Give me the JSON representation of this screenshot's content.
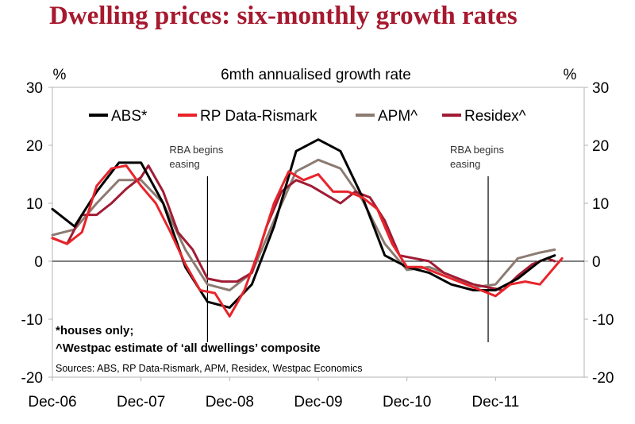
{
  "title": "Dwelling prices: six-monthly growth rates",
  "chart_data": {
    "type": "line",
    "subtitle": "6mth annualised growth rate",
    "y_unit_left": "%",
    "y_unit_right": "%",
    "ylim": [
      -20,
      30
    ],
    "yticks": [
      "30",
      "20",
      "10",
      "0",
      "-10",
      "-20"
    ],
    "xlim": [
      "2006-12",
      "2012-12"
    ],
    "xticks": [
      "Dec-06",
      "Dec-07",
      "Dec-08",
      "Dec-09",
      "Dec-10",
      "Dec-11"
    ],
    "grid": false,
    "legend_position": "top",
    "series": [
      {
        "name": "ABS*",
        "color": "#000000",
        "points": [
          [
            "2006-12",
            9
          ],
          [
            "2007-03",
            6
          ],
          [
            "2007-06",
            12
          ],
          [
            "2007-09",
            17
          ],
          [
            "2007-12",
            17
          ],
          [
            "2008-03",
            10
          ],
          [
            "2008-06",
            -1
          ],
          [
            "2008-09",
            -7
          ],
          [
            "2008-12",
            -8
          ],
          [
            "2009-03",
            -4
          ],
          [
            "2009-06",
            6
          ],
          [
            "2009-09",
            19
          ],
          [
            "2009-12",
            21
          ],
          [
            "2010-03",
            19
          ],
          [
            "2010-06",
            11
          ],
          [
            "2010-09",
            1
          ],
          [
            "2010-12",
            -1
          ],
          [
            "2011-03",
            -2
          ],
          [
            "2011-06",
            -4
          ],
          [
            "2011-09",
            -5
          ],
          [
            "2011-12",
            -5
          ],
          [
            "2012-03",
            -3
          ],
          [
            "2012-06",
            0
          ],
          [
            "2012-08",
            1
          ]
        ]
      },
      {
        "name": "RP Data-Rismark",
        "color": "#e8242b",
        "points": [
          [
            "2006-12",
            4
          ],
          [
            "2007-02",
            3
          ],
          [
            "2007-04",
            5
          ],
          [
            "2007-06",
            13
          ],
          [
            "2007-08",
            16
          ],
          [
            "2007-10",
            16.5
          ],
          [
            "2007-12",
            13
          ],
          [
            "2008-02",
            10
          ],
          [
            "2008-04",
            5
          ],
          [
            "2008-06",
            -0.5
          ],
          [
            "2008-08",
            -5
          ],
          [
            "2008-10",
            -5.5
          ],
          [
            "2008-12",
            -9.5
          ],
          [
            "2009-02",
            -5
          ],
          [
            "2009-04",
            2
          ],
          [
            "2009-06",
            10
          ],
          [
            "2009-08",
            15.5
          ],
          [
            "2009-10",
            14
          ],
          [
            "2009-12",
            15
          ],
          [
            "2010-02",
            12
          ],
          [
            "2010-04",
            12
          ],
          [
            "2010-06",
            11
          ],
          [
            "2010-08",
            9
          ],
          [
            "2010-10",
            3
          ],
          [
            "2010-12",
            -1
          ],
          [
            "2011-02",
            -1
          ],
          [
            "2011-04",
            -2
          ],
          [
            "2011-06",
            -3
          ],
          [
            "2011-08",
            -4
          ],
          [
            "2011-10",
            -5
          ],
          [
            "2011-12",
            -6
          ],
          [
            "2012-02",
            -4
          ],
          [
            "2012-04",
            -3.5
          ],
          [
            "2012-06",
            -4
          ],
          [
            "2012-08",
            -1
          ],
          [
            "2012-09",
            0.5
          ]
        ]
      },
      {
        "name": "APM^",
        "color": "#8c7b72",
        "points": [
          [
            "2006-12",
            4.5
          ],
          [
            "2007-03",
            5.5
          ],
          [
            "2007-06",
            10
          ],
          [
            "2007-09",
            14
          ],
          [
            "2007-12",
            14
          ],
          [
            "2008-03",
            10
          ],
          [
            "2008-06",
            2
          ],
          [
            "2008-09",
            -4
          ],
          [
            "2008-12",
            -5
          ],
          [
            "2009-03",
            -2
          ],
          [
            "2009-06",
            7
          ],
          [
            "2009-09",
            15.5
          ],
          [
            "2009-12",
            17.5
          ],
          [
            "2010-03",
            16
          ],
          [
            "2010-06",
            10.5
          ],
          [
            "2010-09",
            3
          ],
          [
            "2010-12",
            -1.5
          ],
          [
            "2011-03",
            -1
          ],
          [
            "2011-06",
            -2.5
          ],
          [
            "2011-09",
            -4.5
          ],
          [
            "2011-12",
            -4
          ],
          [
            "2012-03",
            0.5
          ],
          [
            "2012-06",
            1.5
          ],
          [
            "2012-08",
            2
          ]
        ]
      },
      {
        "name": "Residex^",
        "color": "#a01c34",
        "points": [
          [
            "2006-12",
            4
          ],
          [
            "2007-02",
            3
          ],
          [
            "2007-04",
            8
          ],
          [
            "2007-06",
            8
          ],
          [
            "2007-08",
            10
          ],
          [
            "2007-10",
            12.5
          ],
          [
            "2007-12",
            14.5
          ],
          [
            "2008-01",
            16.5
          ],
          [
            "2008-03",
            12
          ],
          [
            "2008-05",
            5
          ],
          [
            "2008-07",
            2
          ],
          [
            "2008-09",
            -3
          ],
          [
            "2008-11",
            -3.5
          ],
          [
            "2009-01",
            -3.5
          ],
          [
            "2009-03",
            -2
          ],
          [
            "2009-05",
            6
          ],
          [
            "2009-07",
            12
          ],
          [
            "2009-09",
            14
          ],
          [
            "2009-11",
            13
          ],
          [
            "2010-01",
            11.5
          ],
          [
            "2010-03",
            10
          ],
          [
            "2010-05",
            12
          ],
          [
            "2010-07",
            11
          ],
          [
            "2010-09",
            7
          ],
          [
            "2010-11",
            1
          ],
          [
            "2011-01",
            0.5
          ],
          [
            "2011-03",
            0
          ],
          [
            "2011-05",
            -2
          ],
          [
            "2011-07",
            -3
          ],
          [
            "2011-09",
            -4
          ],
          [
            "2011-11",
            -4.5
          ],
          [
            "2012-01",
            -5
          ],
          [
            "2012-03",
            -2.5
          ],
          [
            "2012-05",
            -0.5
          ],
          [
            "2012-07",
            0.5
          ],
          [
            "2012-08",
            0
          ]
        ]
      }
    ],
    "annotations": [
      {
        "text_lines": [
          "RBA begins",
          "easing"
        ],
        "x": "2008-09"
      },
      {
        "text_lines": [
          "RBA begins",
          "easing"
        ],
        "x": "2011-11"
      }
    ],
    "footnotes": [
      "*houses only;",
      "^Westpac estimate of ‘all dwellings’ composite"
    ],
    "source": "Sources: ABS, RP Data-Rismark, APM, Residex, Westpac Economics"
  }
}
